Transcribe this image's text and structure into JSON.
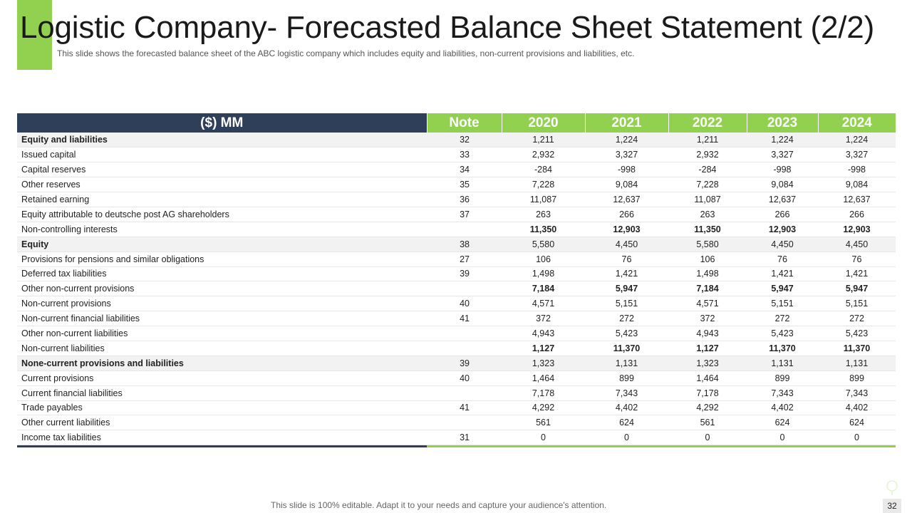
{
  "slide": {
    "title": "Logistic Company- Forecasted Balance Sheet Statement (2/2)",
    "subtitle": "This slide shows the forecasted balance sheet of the ABC logistic company which includes equity and liabilities, non-current provisions and liabilities, etc.",
    "footer": "This slide is 100% editable. Adapt it to your needs and capture your audience's attention.",
    "page_number": "32",
    "colors": {
      "accent": "#92d050",
      "header_dark": "#2f3f5a"
    }
  },
  "table": {
    "headers": [
      "($) MM",
      "Note",
      "2020",
      "2021",
      "2022",
      "2023",
      "2024"
    ],
    "rows": [
      {
        "label": "Equity and liabilities",
        "note": "32",
        "values": [
          "1,211",
          "1,224",
          "1,211",
          "1,224",
          "1,224"
        ]
      },
      {
        "label": "Issued capital",
        "note": "33",
        "values": [
          "2,932",
          "3,327",
          "2,932",
          "3,327",
          "3,327"
        ]
      },
      {
        "label": "Capital reserves",
        "note": "34",
        "values": [
          "-284",
          "-998",
          "-284",
          "-998",
          "-998"
        ]
      },
      {
        "label": "Other reserves",
        "note": "35",
        "values": [
          "7,228",
          "9,084",
          "7,228",
          "9,084",
          "9,084"
        ]
      },
      {
        "label": "Retained earning",
        "note": "36",
        "values": [
          "11,087",
          "12,637",
          "11,087",
          "12,637",
          "12,637"
        ]
      },
      {
        "label": "Equity attributable to deutsche post AG shareholders",
        "note": "37",
        "values": [
          "263",
          "266",
          "263",
          "266",
          "266"
        ]
      },
      {
        "label": "Non-controlling interests",
        "note": "",
        "values": [
          "11,350",
          "12,903",
          "11,350",
          "12,903",
          "12,903"
        ]
      },
      {
        "label": "Equity",
        "note": "38",
        "values": [
          "5,580",
          "4,450",
          "5,580",
          "4,450",
          "4,450"
        ]
      },
      {
        "label": "Provisions for pensions and similar obligations",
        "note": "27",
        "values": [
          "106",
          "76",
          "106",
          "76",
          "76"
        ]
      },
      {
        "label": "Deferred tax liabilities",
        "note": "39",
        "values": [
          "1,498",
          "1,421",
          "1,498",
          "1,421",
          "1,421"
        ]
      },
      {
        "label": "Other non-current provisions",
        "note": "",
        "values": [
          "7,184",
          "5,947",
          "7,184",
          "5,947",
          "5,947"
        ]
      },
      {
        "label": "Non-current provisions",
        "note": "40",
        "values": [
          "4,571",
          "5,151",
          "4,571",
          "5,151",
          "5,151"
        ]
      },
      {
        "label": "Non-current financial liabilities",
        "note": "41",
        "values": [
          "372",
          "272",
          "372",
          "272",
          "272"
        ]
      },
      {
        "label": "Other non-current liabilities",
        "note": "",
        "values": [
          "4,943",
          "5,423",
          "4,943",
          "5,423",
          "5,423"
        ]
      },
      {
        "label": "Non-current liabilities",
        "note": "",
        "values": [
          "1,127",
          "11,370",
          "1,127",
          "11,370",
          "11,370"
        ]
      },
      {
        "label": "None-current provisions and liabilities",
        "note": "39",
        "values": [
          "1,323",
          "1,131",
          "1,323",
          "1,131",
          "1,131"
        ]
      },
      {
        "label": "Current provisions",
        "note": "40",
        "values": [
          "1,464",
          "899",
          "1,464",
          "899",
          "899"
        ]
      },
      {
        "label": "Current financial liabilities",
        "note": "",
        "values": [
          "7,178",
          "7,343",
          "7,178",
          "7,343",
          "7,343"
        ]
      },
      {
        "label": "Trade payables",
        "note": "41",
        "values": [
          "4,292",
          "4,402",
          "4,292",
          "4,402",
          "4,402"
        ]
      },
      {
        "label": "Other current liabilities",
        "note": "",
        "values": [
          "561",
          "624",
          "561",
          "624",
          "624"
        ]
      },
      {
        "label": "Income tax liabilities",
        "note": "31",
        "values": [
          "0",
          "0",
          "0",
          "0",
          "0"
        ]
      }
    ]
  }
}
